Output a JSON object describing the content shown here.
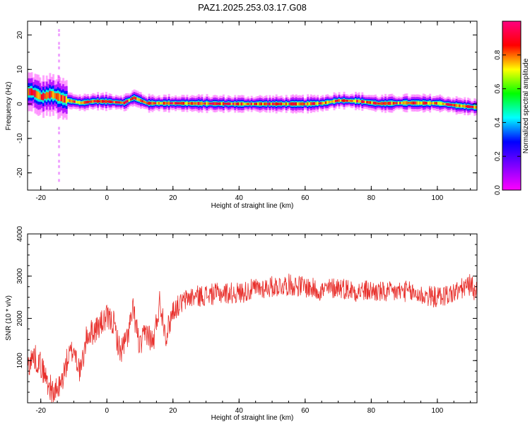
{
  "chart_data": [
    {
      "type": "heatmap",
      "title": "PAZ1.2025.253.03.17.G08",
      "xlabel": "Height of straight line (km)",
      "ylabel": "Frequency (Hz)",
      "xlim": [
        -24,
        112
      ],
      "ylim": [
        -25,
        24
      ],
      "xticks": [
        "-20",
        "0",
        "20",
        "40",
        "60",
        "80",
        "100"
      ],
      "yticks": [
        "20",
        "10",
        "0",
        "-10",
        "-20"
      ],
      "colorbar": {
        "label": "Normalized spectral amplitude",
        "range": [
          0,
          1
        ],
        "ticks": [
          "0.0",
          "0.2",
          "0.4",
          "0.6",
          "0.8"
        ],
        "colormap": [
          "#ff00ff",
          "#8000ff",
          "#0000ff",
          "#00ffff",
          "#00ff00",
          "#ffff00",
          "#ff0000",
          "#ff0080"
        ]
      },
      "ridge": {
        "x": [
          -23,
          -20,
          -17,
          -15,
          -12,
          -8,
          -4,
          0,
          5,
          8,
          12,
          20,
          30,
          40,
          50,
          60,
          65,
          70,
          76,
          82,
          86,
          90,
          100,
          106,
          112
        ],
        "y": [
          3.5,
          2,
          2.8,
          2,
          1,
          0.3,
          0.8,
          0.7,
          0.3,
          1.8,
          0.2,
          0.2,
          0.1,
          0,
          0,
          0,
          0.2,
          1,
          0.8,
          0.1,
          0.2,
          0.3,
          0.2,
          -0.5,
          -1
        ]
      }
    },
    {
      "type": "line",
      "xlabel": "Height of straight line (km)",
      "ylabel": "SNR (10 * v/v)",
      "xlim": [
        -24,
        112
      ],
      "ylim": [
        0,
        4000
      ],
      "xticks": [
        "-20",
        "0",
        "20",
        "40",
        "60",
        "80",
        "100"
      ],
      "yticks": [
        "1000",
        "2000",
        "3000",
        "4000"
      ],
      "line_color": "#e8302c",
      "series_keypoints": {
        "x": [
          -24,
          -22,
          -20,
          -18,
          -16,
          -14,
          -12,
          -10,
          -8,
          -6,
          -4,
          -2,
          0,
          2,
          4,
          6,
          8,
          10,
          12,
          14,
          16,
          18,
          20,
          25,
          30,
          35,
          40,
          45,
          50,
          55,
          60,
          65,
          70,
          75,
          80,
          85,
          90,
          95,
          100,
          105,
          110,
          112
        ],
        "y": [
          900,
          1100,
          900,
          500,
          200,
          400,
          1000,
          1300,
          700,
          1600,
          1700,
          1850,
          2000,
          1900,
          1200,
          1500,
          2200,
          1300,
          1700,
          1400,
          2400,
          1600,
          2200,
          2500,
          2550,
          2600,
          2600,
          2700,
          2750,
          2800,
          2750,
          2650,
          2750,
          2650,
          2650,
          2600,
          2650,
          2550,
          2500,
          2600,
          2800,
          2600
        ]
      }
    }
  ]
}
